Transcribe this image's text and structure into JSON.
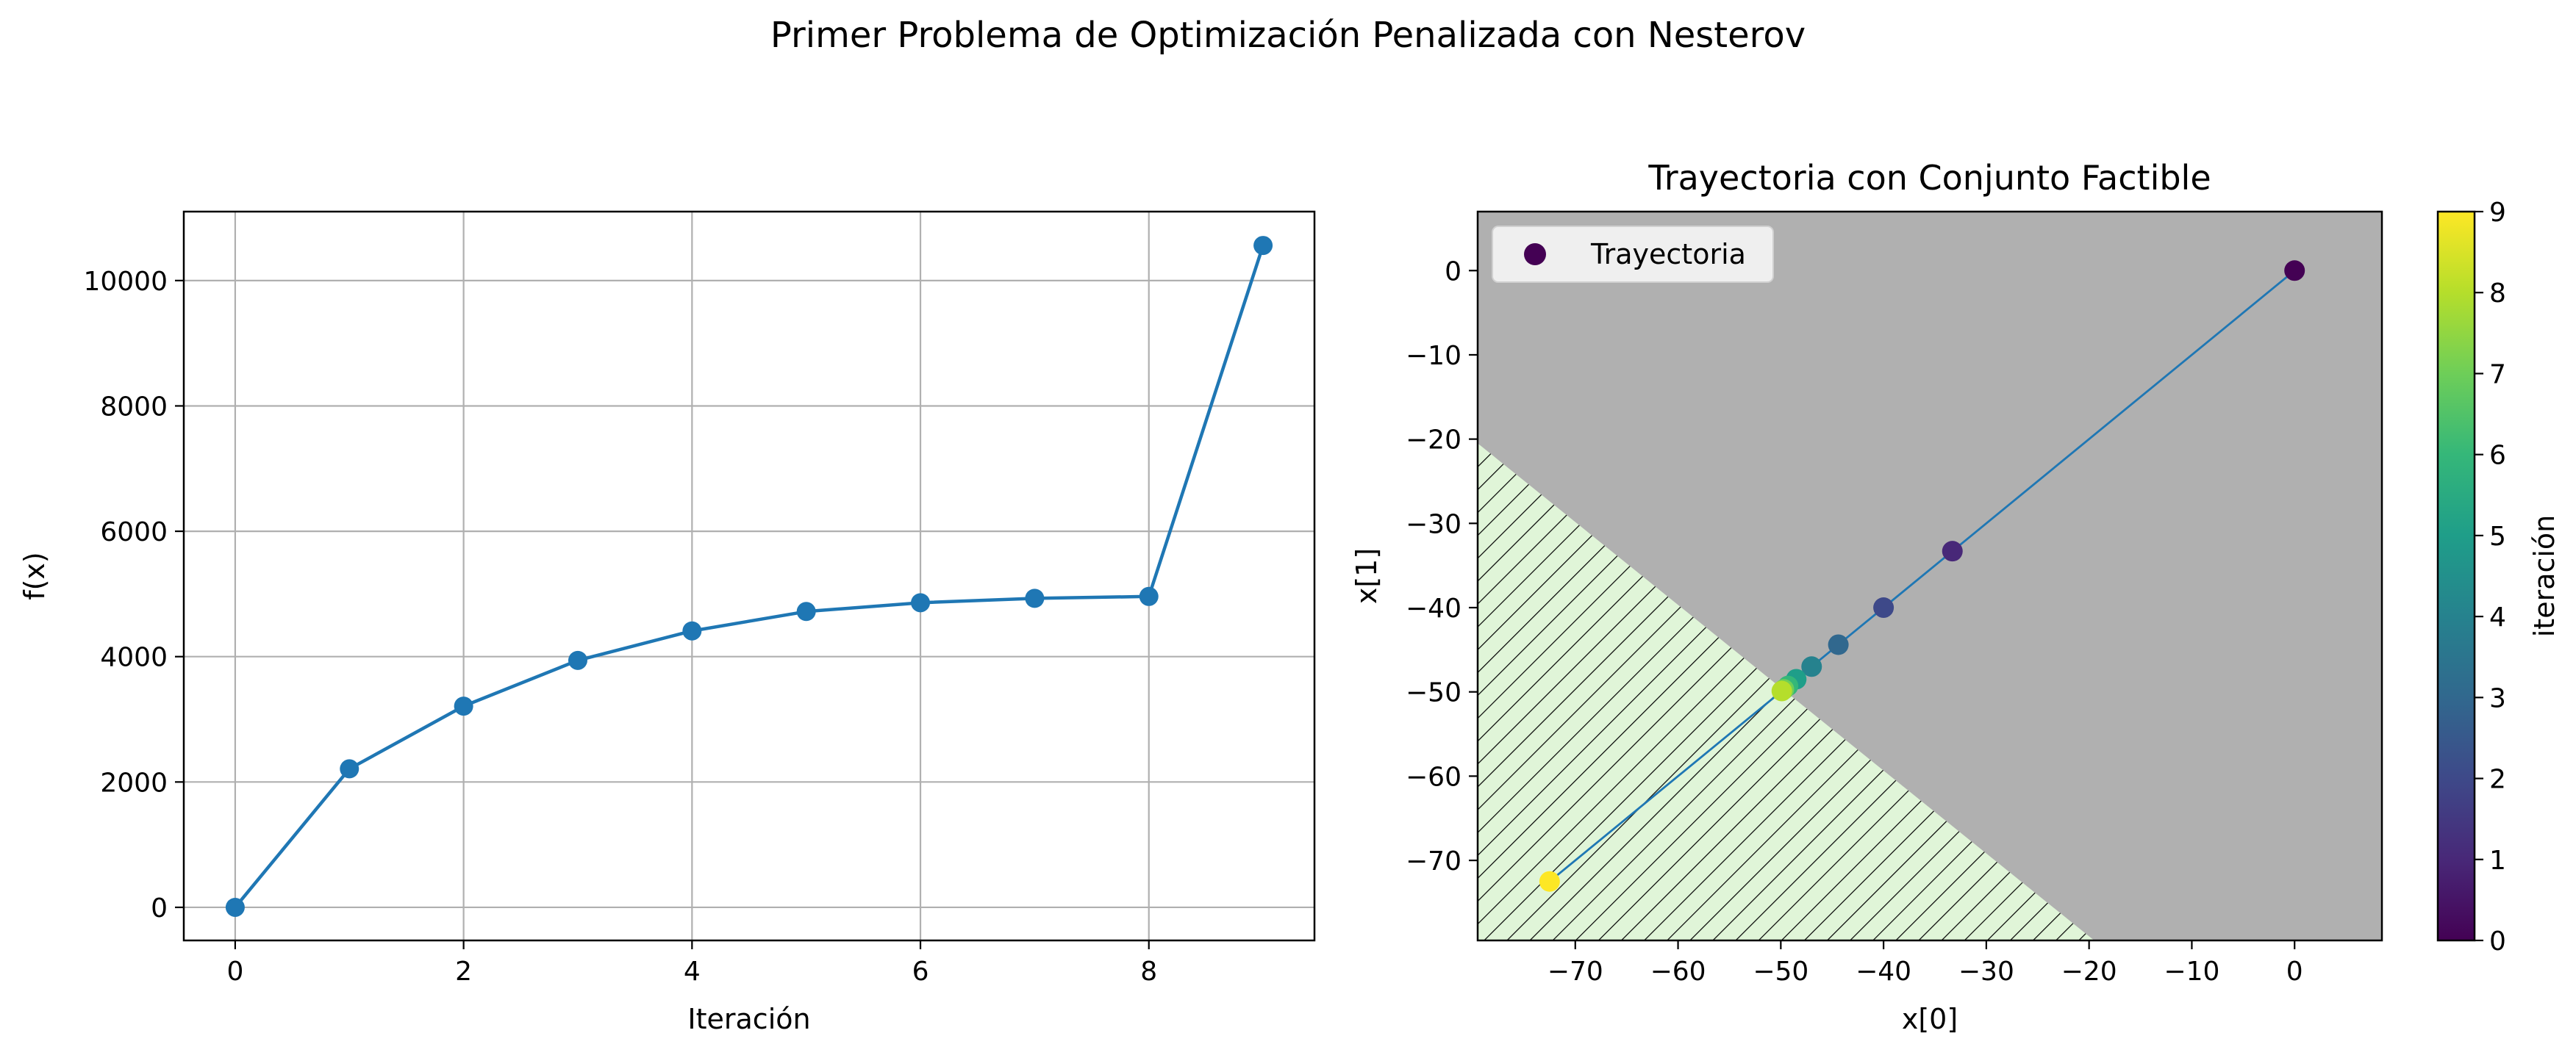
{
  "figure": {
    "suptitle": "Primer Problema de Optimización Penalizada con Nesterov"
  },
  "colors": {
    "series": "#1f77b4",
    "grid": "#b0b0b0",
    "infeasible_background": "#b0b0b0",
    "feasible_fill": "#e0f5d8",
    "hatch": "#000000",
    "colormap": "viridis"
  },
  "chart_data": [
    {
      "type": "line",
      "title": "",
      "xlabel": "Iteración",
      "ylabel": "f(x)",
      "xlim": [
        -0.45,
        9.45
      ],
      "ylim": [
        -528,
        11100
      ],
      "xticks": [
        0,
        2,
        4,
        6,
        8
      ],
      "yticks": [
        0,
        2000,
        4000,
        6000,
        8000,
        10000
      ],
      "grid": true,
      "legend": "none",
      "series": [
        {
          "x": [
            0,
            1,
            2,
            3,
            4,
            5,
            6,
            7,
            8,
            9
          ],
          "values": [
            0,
            2210,
            3210,
            3940,
            4410,
            4720,
            4860,
            4930,
            4960,
            10560
          ],
          "marker": "circle"
        }
      ]
    },
    {
      "type": "scatter",
      "title": "Trayectoria con Conjunto Factible",
      "xlabel": "x[0]",
      "ylabel": "x[1]",
      "xlim": [
        -79.5,
        8.5
      ],
      "ylim": [
        -79.5,
        7.0
      ],
      "xticks": [
        -70,
        -60,
        -50,
        -40,
        -30,
        -20,
        -10,
        0
      ],
      "yticks": [
        -70,
        -60,
        -50,
        -40,
        -30,
        -20,
        -10,
        0
      ],
      "grid": false,
      "legend": "top-left",
      "feasible_region": {
        "boundary": [
          [
            -79.5,
            -20.5
          ],
          [
            -19.5,
            -79.5
          ]
        ],
        "side": "lower-left",
        "fill": "hatched light green",
        "outside": "gray"
      },
      "series": [
        {
          "name": "Trayectoria",
          "x": [
            0,
            -33.3,
            -40.0,
            -44.4,
            -47.0,
            -48.5,
            -49.3,
            -49.7,
            -49.9,
            -72.5
          ],
          "y": [
            0,
            -33.3,
            -40.0,
            -44.4,
            -47.0,
            -48.5,
            -49.3,
            -49.7,
            -49.9,
            -72.5
          ],
          "color_by": "iteración",
          "iteration": [
            0,
            1,
            2,
            3,
            4,
            5,
            6,
            7,
            8,
            9
          ]
        }
      ],
      "colorbar": {
        "label": "iteración",
        "range": [
          0,
          9
        ],
        "ticks": [
          0,
          1,
          2,
          3,
          4,
          5,
          6,
          7,
          8,
          9
        ]
      }
    }
  ]
}
